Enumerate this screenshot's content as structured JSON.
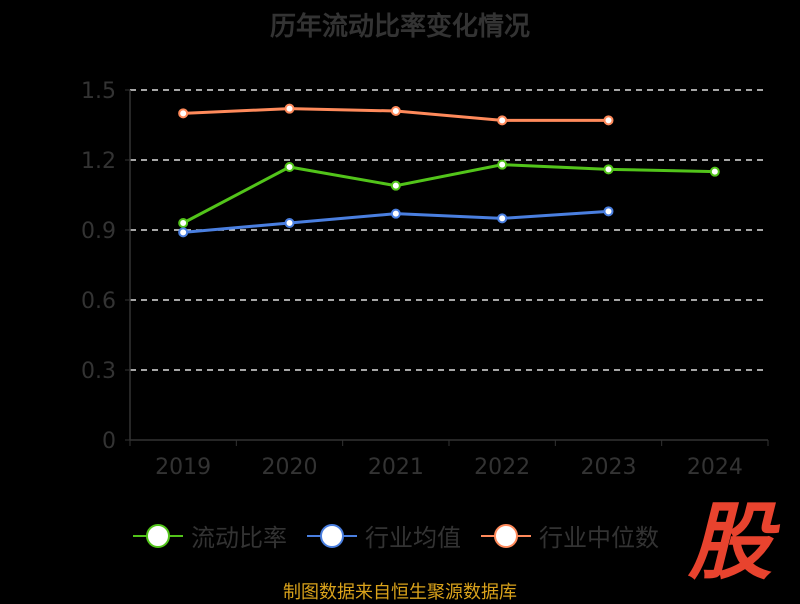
{
  "chart_data": {
    "type": "line",
    "title": "历年流动比率变化情况",
    "categories": [
      "2019",
      "2020",
      "2021",
      "2022",
      "2023",
      "2024"
    ],
    "ylim": [
      0,
      1.5
    ],
    "yticks": [
      "0",
      "0.3",
      "0.6",
      "0.9",
      "1.2",
      "1.5"
    ],
    "yticks_values": [
      0,
      0.3,
      0.6,
      0.9,
      1.2,
      1.5
    ],
    "grid": true,
    "legend_position": "bottom",
    "series": [
      {
        "name": "流动比率",
        "color": "#52c41a",
        "values": [
          0.93,
          1.17,
          1.09,
          1.18,
          1.16,
          1.15
        ]
      },
      {
        "name": "行业均值",
        "color": "#4a7fe0",
        "values": [
          0.89,
          0.93,
          0.97,
          0.95,
          0.98,
          null
        ]
      },
      {
        "name": "行业中位数",
        "color": "#ff8a5b",
        "values": [
          1.4,
          1.42,
          1.41,
          1.37,
          1.37,
          null
        ]
      }
    ]
  },
  "source": "制图数据来自恒生聚源数据库",
  "logo_text": "股"
}
